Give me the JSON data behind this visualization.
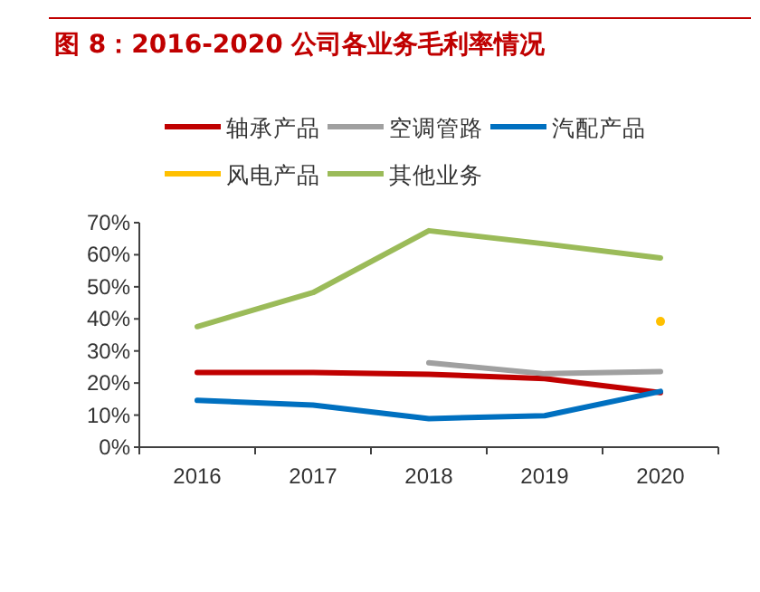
{
  "chart_data": {
    "type": "line",
    "title": "图 8：2016-2020 公司各业务毛利率情况",
    "categories": [
      "2016",
      "2017",
      "2018",
      "2019",
      "2020"
    ],
    "series": [
      {
        "name": "轴承产品",
        "color": "#c00000",
        "values": [
          23.3,
          23.3,
          22.7,
          21.4,
          17
        ]
      },
      {
        "name": "空调管路",
        "color": "#a0a0a0",
        "values": [
          null,
          null,
          26.3,
          22.9,
          23.6
        ]
      },
      {
        "name": "汽配产品",
        "color": "#0070c0",
        "values": [
          14.6,
          13.1,
          8.9,
          9.8,
          17.4
        ]
      },
      {
        "name": "风电产品",
        "color": "#ffc000",
        "type": "scatter",
        "values": [
          null,
          null,
          null,
          null,
          39.2
        ]
      },
      {
        "name": "其他业务",
        "color": "#9bbb59",
        "values": [
          37.6,
          48.2,
          67.5,
          63.4,
          59
        ]
      }
    ],
    "ylim": [
      0,
      70
    ],
    "yticks": [
      {
        "value": 0,
        "label": "0%"
      },
      {
        "value": 10,
        "label": "10%"
      },
      {
        "value": 20,
        "label": "20%"
      },
      {
        "value": 30,
        "label": "30%"
      },
      {
        "value": 40,
        "label": "40%"
      },
      {
        "value": 50,
        "label": "50%"
      },
      {
        "value": 60,
        "label": "60%"
      },
      {
        "value": 70,
        "label": "70%"
      }
    ],
    "legend": "top",
    "grid": false
  }
}
